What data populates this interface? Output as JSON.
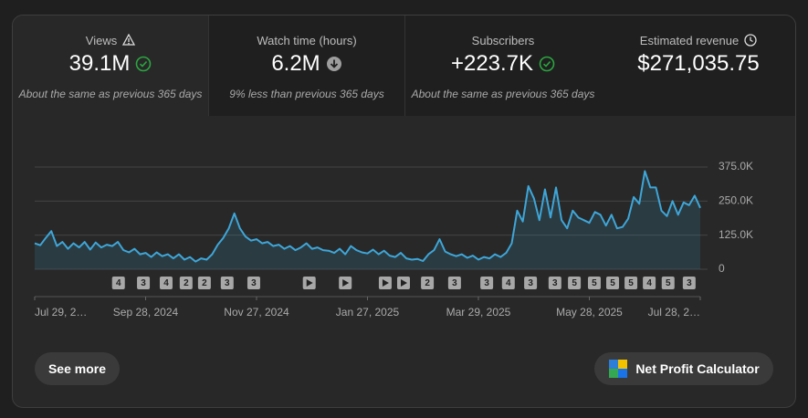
{
  "metrics": [
    {
      "label": "Views",
      "value": "39.1M",
      "note": "About the same as previous 365 days"
    },
    {
      "label": "Watch time (hours)",
      "value": "6.2M",
      "note": "9% less than previous 365 days"
    },
    {
      "label": "Subscribers",
      "value": "+223.7K",
      "note": "About the same as previous 365 days"
    },
    {
      "label": "Estimated revenue",
      "value": "$271,035.75"
    }
  ],
  "chart_data": {
    "type": "area",
    "categories": [
      "Jul 29, 2…",
      null,
      null,
      null,
      null,
      null,
      null,
      null,
      null,
      null,
      null,
      null,
      null,
      null,
      null,
      null,
      null,
      null,
      null,
      null,
      "Sep 28, 2024",
      null,
      null,
      null,
      null,
      null,
      null,
      null,
      null,
      null,
      null,
      null,
      null,
      null,
      null,
      null,
      null,
      null,
      null,
      null,
      "Nov 27, 2024",
      null,
      null,
      null,
      null,
      null,
      null,
      null,
      null,
      null,
      null,
      null,
      null,
      null,
      null,
      null,
      null,
      null,
      null,
      null,
      "Jan 27, 2025",
      null,
      null,
      null,
      null,
      null,
      null,
      null,
      null,
      null,
      null,
      null,
      null,
      null,
      null,
      null,
      null,
      null,
      null,
      null,
      "Mar 29, 2025",
      null,
      null,
      null,
      null,
      null,
      null,
      null,
      null,
      null,
      null,
      null,
      null,
      null,
      null,
      null,
      null,
      null,
      null,
      null,
      "May 28, 2025",
      null,
      null,
      null,
      null,
      null,
      null,
      null,
      null,
      null,
      null,
      null,
      null,
      null,
      null,
      null,
      null,
      null,
      null,
      null,
      "Jul 28, 2…"
    ],
    "series": [
      {
        "color": "#3ea6d8",
        "values": [
          95000,
          88000,
          115000,
          140000,
          85000,
          100000,
          75000,
          95000,
          80000,
          100000,
          72000,
          98000,
          80000,
          90000,
          85000,
          100000,
          70000,
          62000,
          75000,
          55000,
          60000,
          45000,
          62000,
          48000,
          55000,
          40000,
          55000,
          35000,
          45000,
          28000,
          40000,
          35000,
          55000,
          90000,
          115000,
          150000,
          205000,
          150000,
          120000,
          105000,
          110000,
          95000,
          100000,
          85000,
          90000,
          75000,
          85000,
          70000,
          80000,
          95000,
          75000,
          80000,
          70000,
          68000,
          60000,
          75000,
          55000,
          85000,
          70000,
          62000,
          58000,
          72000,
          55000,
          68000,
          50000,
          45000,
          60000,
          40000,
          35000,
          38000,
          30000,
          55000,
          70000,
          110000,
          65000,
          55000,
          48000,
          55000,
          42000,
          50000,
          35000,
          45000,
          40000,
          55000,
          45000,
          60000,
          95000,
          215000,
          175000,
          305000,
          260000,
          180000,
          293000,
          190000,
          300000,
          180000,
          150000,
          215000,
          190000,
          180000,
          170000,
          210000,
          200000,
          160000,
          200000,
          150000,
          155000,
          185000,
          265000,
          240000,
          360000,
          300000,
          300000,
          215000,
          195000,
          250000,
          200000,
          245000,
          235000,
          270000,
          225000
        ]
      }
    ],
    "ylim": [
      0,
      375000
    ],
    "yticks": [
      0,
      {
        "value": 125000,
        "label": "125.0K"
      },
      {
        "value": 250000,
        "label": "250.0K"
      },
      {
        "value": 375000,
        "label": "375.0K"
      }
    ],
    "grid": true,
    "markers": [
      {
        "x": 15.1,
        "label": "4"
      },
      {
        "x": 19.6,
        "label": "3"
      },
      {
        "x": 23.7,
        "label": "4"
      },
      {
        "x": 27.3,
        "label": "2"
      },
      {
        "x": 30.6,
        "label": "2"
      },
      {
        "x": 34.7,
        "label": "3"
      },
      {
        "x": 39.5,
        "label": "3"
      },
      {
        "x": 49.5
      },
      {
        "x": 56
      },
      {
        "x": 63.2
      },
      {
        "x": 66.5
      },
      {
        "x": 70.8,
        "label": "2"
      },
      {
        "x": 75.7,
        "label": "3"
      },
      {
        "x": 81.5,
        "label": "3"
      },
      {
        "x": 85.4,
        "label": "4"
      },
      {
        "x": 89.4,
        "label": "3"
      },
      {
        "x": 93.8,
        "label": "3"
      },
      {
        "x": 97.3,
        "label": "5"
      },
      {
        "x": 100.9,
        "label": "5"
      },
      {
        "x": 104.2,
        "label": "5"
      },
      {
        "x": 107.5,
        "label": "5"
      },
      {
        "x": 110.8,
        "label": "4"
      },
      {
        "x": 114.2,
        "label": "5"
      },
      {
        "x": 118,
        "label": "3"
      }
    ]
  },
  "buttons": {
    "see_more": "See more",
    "calculator": "Net Profit Calculator"
  }
}
